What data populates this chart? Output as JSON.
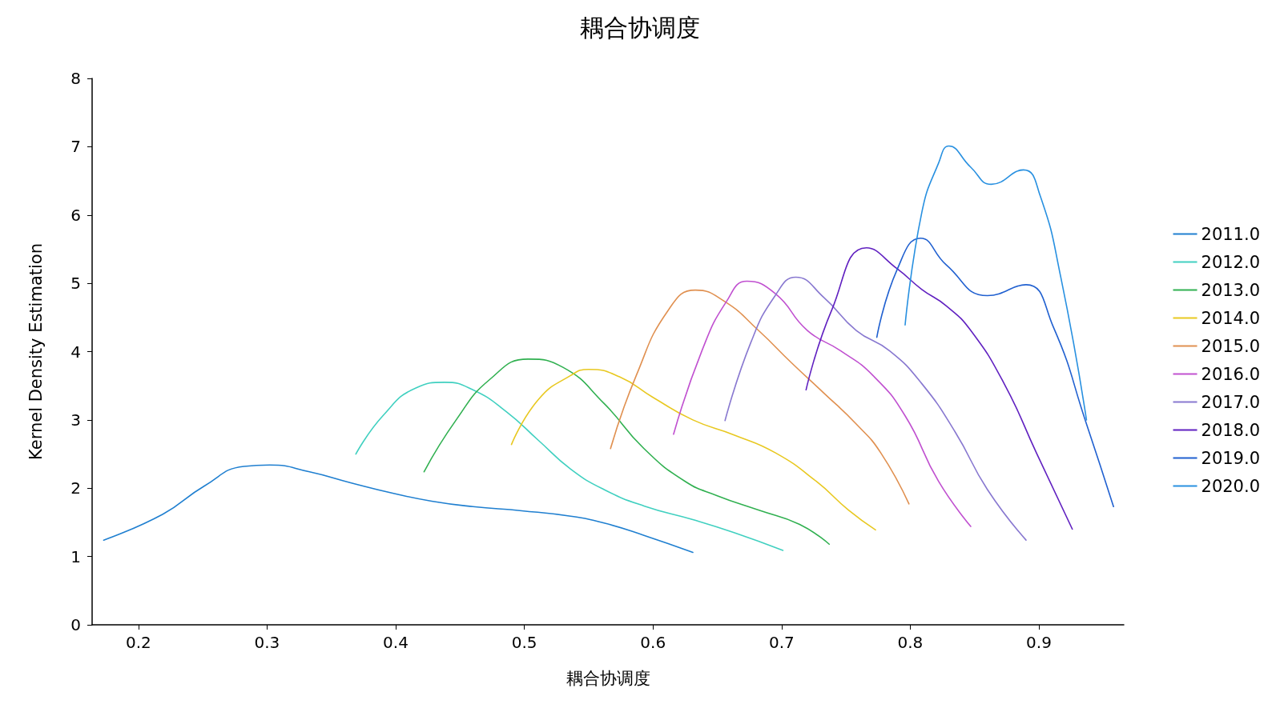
{
  "chart_data": {
    "type": "line",
    "title": "耦合协调度",
    "xlabel": "耦合协调度",
    "ylabel": "Kernel Density Estimation",
    "xlim": [
      0.164,
      0.966
    ],
    "ylim": [
      0,
      8
    ],
    "xticks": [
      0.2,
      0.3,
      0.4,
      0.5,
      0.6,
      0.7,
      0.8,
      0.9
    ],
    "yticks": [
      0,
      1,
      2,
      3,
      4,
      5,
      6,
      7,
      8
    ],
    "grid": false,
    "legend": "right",
    "marker": "none",
    "line_style": "solid",
    "series": [
      {
        "name": "2011.0",
        "color": "#1f7fd0",
        "x": [
          0.173,
          0.219,
          0.251,
          0.282,
          0.302,
          0.333,
          0.365,
          0.397,
          0.428,
          0.46,
          0.498,
          0.536,
          0.562,
          0.593,
          0.631
        ],
        "values": [
          1.24,
          1.62,
          2.03,
          2.32,
          2.34,
          2.24,
          2.08,
          1.93,
          1.81,
          1.73,
          1.67,
          1.59,
          1.49,
          1.31,
          1.06
        ]
      },
      {
        "name": "2012.0",
        "color": "#40d0c0",
        "x": [
          0.369,
          0.39,
          0.416,
          0.438,
          0.46,
          0.486,
          0.511,
          0.536,
          0.562,
          0.593,
          0.631,
          0.663,
          0.701
        ],
        "values": [
          2.5,
          3.06,
          3.47,
          3.55,
          3.44,
          3.12,
          2.7,
          2.28,
          1.98,
          1.74,
          1.54,
          1.35,
          1.09
        ]
      },
      {
        "name": "2013.0",
        "color": "#30b050",
        "x": [
          0.422,
          0.447,
          0.473,
          0.503,
          0.53,
          0.562,
          0.593,
          0.625,
          0.65,
          0.682,
          0.714,
          0.737
        ],
        "values": [
          2.24,
          3.0,
          3.59,
          3.89,
          3.77,
          3.24,
          2.58,
          2.1,
          1.89,
          1.68,
          1.47,
          1.18
        ]
      },
      {
        "name": "2014.0",
        "color": "#e8c820",
        "x": [
          0.49,
          0.511,
          0.536,
          0.55,
          0.574,
          0.6,
          0.631,
          0.663,
          0.695,
          0.727,
          0.752,
          0.773
        ],
        "values": [
          2.64,
          3.3,
          3.65,
          3.74,
          3.63,
          3.33,
          3.0,
          2.78,
          2.52,
          2.1,
          1.68,
          1.39
        ]
      },
      {
        "name": "2015.0",
        "color": "#e09050",
        "x": [
          0.567,
          0.587,
          0.612,
          0.633,
          0.656,
          0.682,
          0.708,
          0.733,
          0.758,
          0.777,
          0.799
        ],
        "values": [
          2.58,
          3.65,
          4.61,
          4.9,
          4.73,
          4.31,
          3.83,
          3.39,
          2.94,
          2.52,
          1.77
        ]
      },
      {
        "name": "2016.0",
        "color": "#c050d0",
        "x": [
          0.616,
          0.638,
          0.657,
          0.673,
          0.695,
          0.72,
          0.746,
          0.771,
          0.796,
          0.822,
          0.847
        ],
        "values": [
          2.79,
          4.01,
          4.73,
          5.03,
          4.85,
          4.31,
          4.01,
          3.65,
          3.06,
          2.1,
          1.44
        ]
      },
      {
        "name": "2017.0",
        "color": "#8878d0",
        "x": [
          0.656,
          0.676,
          0.695,
          0.711,
          0.733,
          0.758,
          0.784,
          0.809,
          0.835,
          0.86,
          0.89
        ],
        "values": [
          2.99,
          4.13,
          4.82,
          5.09,
          4.79,
          4.31,
          4.01,
          3.53,
          2.82,
          1.98,
          1.24
        ]
      },
      {
        "name": "2018.0",
        "color": "#6020c0",
        "x": [
          0.719,
          0.739,
          0.766,
          0.79,
          0.809,
          0.828,
          0.847,
          0.873,
          0.898,
          0.926
        ],
        "values": [
          3.44,
          4.61,
          5.52,
          5.21,
          4.91,
          4.67,
          4.31,
          3.53,
          2.52,
          1.4
        ]
      },
      {
        "name": "2019.0",
        "color": "#2060d0",
        "x": [
          0.774,
          0.79,
          0.808,
          0.828,
          0.86,
          0.89,
          0.911,
          0.937,
          0.958
        ],
        "values": [
          4.21,
          5.21,
          5.66,
          5.27,
          4.82,
          4.98,
          4.37,
          2.94,
          1.73
        ]
      },
      {
        "name": "2020.0",
        "color": "#2890e0",
        "x": [
          0.796,
          0.809,
          0.822,
          0.83,
          0.847,
          0.863,
          0.888,
          0.901,
          0.917,
          0.937
        ],
        "values": [
          4.39,
          6.04,
          6.76,
          7.01,
          6.7,
          6.45,
          6.66,
          6.28,
          5.09,
          3.0
        ]
      }
    ]
  }
}
